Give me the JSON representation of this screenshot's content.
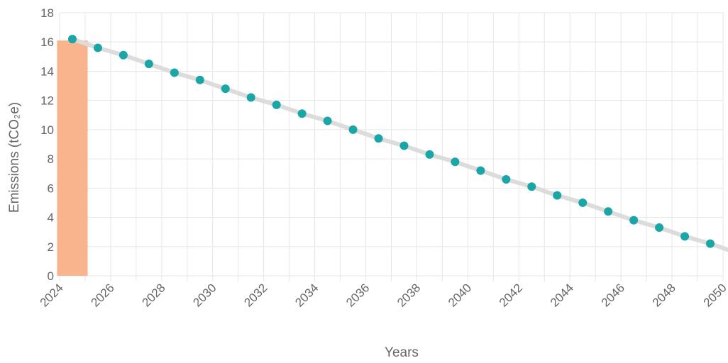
{
  "chart_data": {
    "type": "line",
    "title": "",
    "xlabel": "Years",
    "ylabel": "Emissions (tCO₂e)",
    "xlim": [
      2024,
      2050
    ],
    "ylim": [
      0,
      18
    ],
    "y_ticks": [
      0,
      2,
      4,
      6,
      8,
      10,
      12,
      14,
      16,
      18
    ],
    "x_ticks": [
      2024,
      2026,
      2028,
      2030,
      2032,
      2034,
      2036,
      2038,
      2040,
      2042,
      2044,
      2046,
      2048,
      2050
    ],
    "grid": true,
    "legend": "none",
    "bar": {
      "x": 2024.5,
      "value": 16.1,
      "width_years": 1.2,
      "color": "#f9b48e"
    },
    "series": [
      {
        "color": "#1aa6a6",
        "line_color": "#dcdcdc",
        "x": [
          2024.5,
          2025.5,
          2026.5,
          2027.5,
          2028.5,
          2029.5,
          2030.5,
          2031.5,
          2032.5,
          2033.5,
          2034.5,
          2035.5,
          2036.5,
          2037.5,
          2038.5,
          2039.5,
          2040.5,
          2041.5,
          2042.5,
          2043.5,
          2044.5,
          2045.5,
          2046.5,
          2047.5,
          2048.5,
          2049.5,
          2050.5
        ],
        "values": [
          16.2,
          15.6,
          15.1,
          14.5,
          13.9,
          13.4,
          12.8,
          12.2,
          11.7,
          11.1,
          10.6,
          10.0,
          9.4,
          8.9,
          8.3,
          7.8,
          7.2,
          6.6,
          6.1,
          5.5,
          5.0,
          4.4,
          3.8,
          3.3,
          2.7,
          2.2,
          1.6
        ]
      }
    ]
  }
}
